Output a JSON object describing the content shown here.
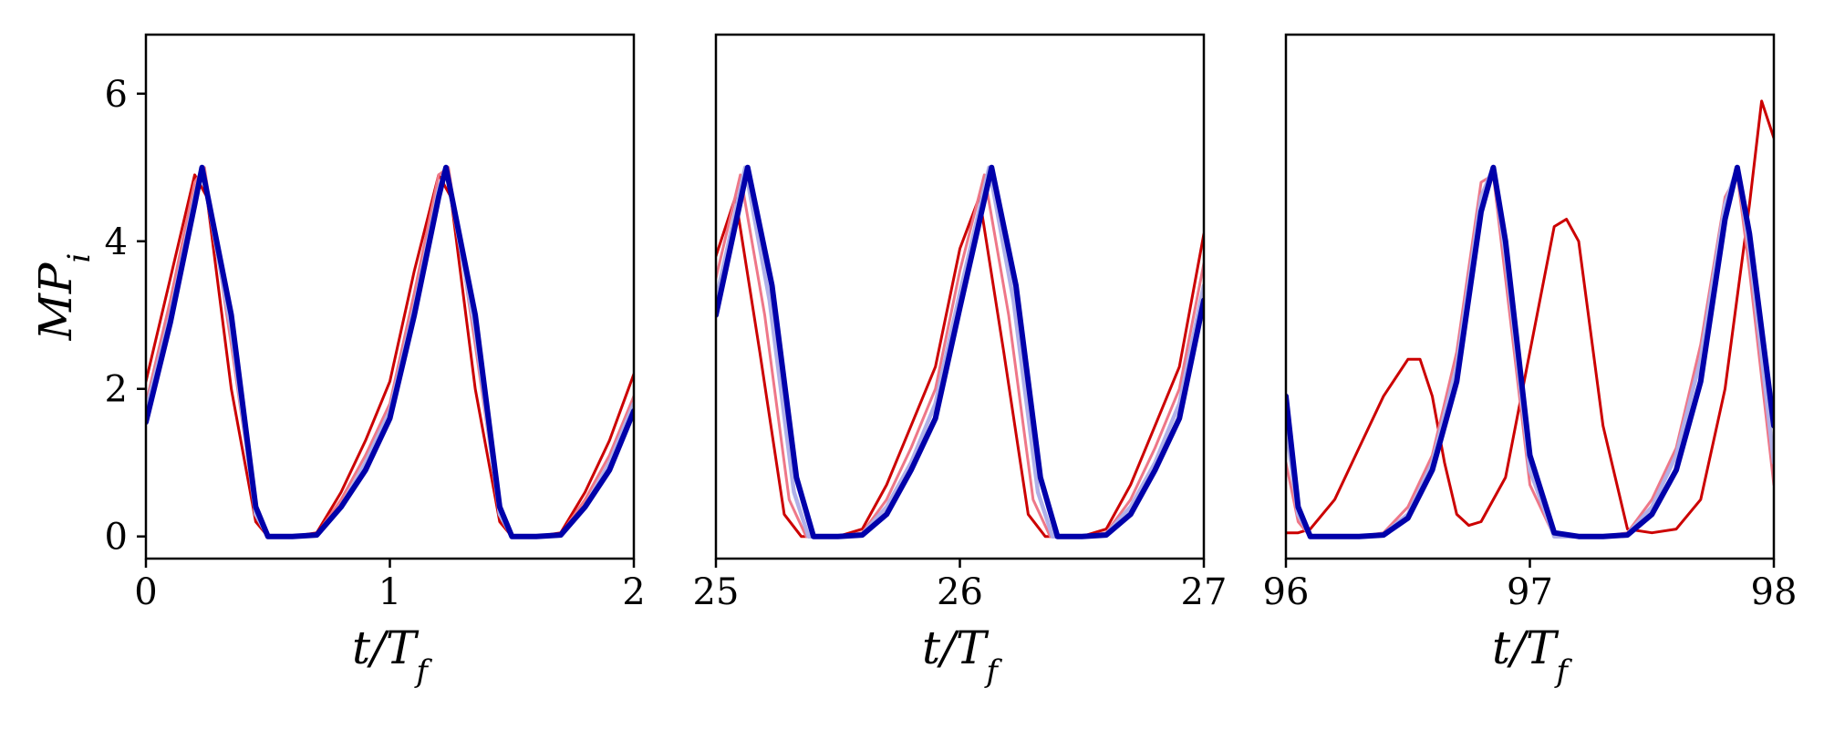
{
  "chart_data": [
    {
      "type": "line",
      "xlabel": "t/T_f",
      "ylabel": "MP_i",
      "xlim": [
        0,
        2
      ],
      "ylim": [
        -0.3,
        6.8
      ],
      "xticks": [
        "0",
        "1",
        "2"
      ],
      "yticks": [
        "0",
        "2",
        "4",
        "6"
      ],
      "grid": false,
      "series": [
        {
          "color": "#cc0000",
          "x": [
            0,
            0.1,
            0.2,
            0.25,
            0.35,
            0.45,
            0.5,
            0.6,
            0.7,
            0.8,
            0.9,
            1.0,
            1.1,
            1.2,
            1.25,
            1.35,
            1.45,
            1.5,
            1.6,
            1.7,
            1.8,
            1.9,
            2.0
          ],
          "y": [
            2.1,
            3.5,
            4.9,
            4.6,
            2.0,
            0.2,
            0,
            0,
            0.05,
            0.6,
            1.3,
            2.1,
            3.6,
            4.9,
            4.6,
            2.0,
            0.2,
            0,
            0,
            0.05,
            0.6,
            1.3,
            2.2
          ]
        },
        {
          "color": "#ee7788",
          "x": [
            0,
            0.1,
            0.2,
            0.24,
            0.35,
            0.45,
            0.5,
            0.6,
            0.7,
            0.8,
            0.9,
            1.0,
            1.1,
            1.2,
            1.24,
            1.35,
            1.45,
            1.5,
            1.6,
            1.7,
            1.8,
            1.9,
            2.0
          ],
          "y": [
            1.8,
            3.2,
            4.8,
            5.0,
            2.6,
            0.3,
            0,
            0,
            0.03,
            0.5,
            1.1,
            1.8,
            3.3,
            4.9,
            5.0,
            2.6,
            0.3,
            0,
            0,
            0.03,
            0.5,
            1.1,
            1.9
          ]
        },
        {
          "color": "#b0b0e8",
          "x": [
            0,
            0.1,
            0.2,
            0.23,
            0.35,
            0.45,
            0.5,
            0.6,
            0.7,
            0.8,
            0.9,
            1.0,
            1.1,
            1.2,
            1.23,
            1.35,
            1.45,
            1.5,
            1.6,
            1.7,
            1.8,
            1.9,
            2.0
          ],
          "y": [
            1.7,
            3.0,
            4.6,
            5.0,
            2.8,
            0.3,
            0,
            0,
            0.02,
            0.4,
            1.0,
            1.7,
            3.1,
            4.7,
            5.0,
            2.8,
            0.3,
            0,
            0,
            0.02,
            0.4,
            1.0,
            1.8
          ]
        },
        {
          "color": "#0000aa",
          "x": [
            0,
            0.1,
            0.2,
            0.23,
            0.35,
            0.45,
            0.5,
            0.6,
            0.7,
            0.8,
            0.9,
            1.0,
            1.1,
            1.2,
            1.23,
            1.35,
            1.45,
            1.5,
            1.6,
            1.7,
            1.8,
            1.9,
            2.0
          ],
          "y": [
            1.55,
            2.9,
            4.5,
            5.0,
            3.0,
            0.4,
            0,
            0,
            0.02,
            0.4,
            0.9,
            1.6,
            3.0,
            4.6,
            5.0,
            3.0,
            0.4,
            0,
            0,
            0.02,
            0.4,
            0.9,
            1.7
          ]
        }
      ]
    },
    {
      "type": "line",
      "xlabel": "t/T_f",
      "ylabel": "",
      "xlim": [
        25,
        27
      ],
      "ylim": [
        -0.3,
        6.8
      ],
      "xticks": [
        "25",
        "26",
        "27"
      ],
      "yticks": [],
      "grid": false,
      "series": [
        {
          "color": "#cc0000",
          "x": [
            25,
            25.08,
            25.18,
            25.28,
            25.35,
            25.4,
            25.5,
            25.6,
            25.7,
            25.8,
            25.9,
            26.0,
            26.08,
            26.18,
            26.28,
            26.35,
            26.4,
            26.5,
            26.6,
            26.7,
            26.8,
            26.9,
            27.0
          ],
          "y": [
            3.8,
            4.6,
            2.5,
            0.3,
            0,
            0,
            0,
            0.1,
            0.7,
            1.5,
            2.3,
            3.9,
            4.6,
            2.5,
            0.3,
            0,
            0,
            0,
            0.1,
            0.7,
            1.5,
            2.3,
            4.1
          ]
        },
        {
          "color": "#ee7788",
          "x": [
            25,
            25.1,
            25.2,
            25.3,
            25.37,
            25.42,
            25.5,
            25.6,
            25.7,
            25.8,
            25.9,
            26.0,
            26.1,
            26.2,
            26.3,
            26.37,
            26.42,
            26.5,
            26.6,
            26.7,
            26.8,
            26.9,
            27.0
          ],
          "y": [
            3.5,
            4.9,
            3.0,
            0.5,
            0,
            0,
            0,
            0.05,
            0.5,
            1.2,
            2.0,
            3.6,
            4.9,
            3.0,
            0.5,
            0,
            0,
            0,
            0.05,
            0.5,
            1.2,
            2.0,
            3.7
          ]
        },
        {
          "color": "#b0b0e8",
          "x": [
            25,
            25.12,
            25.22,
            25.32,
            25.38,
            25.43,
            25.5,
            25.6,
            25.7,
            25.8,
            25.9,
            26.0,
            26.12,
            26.22,
            26.32,
            26.38,
            26.43,
            26.5,
            26.6,
            26.7,
            26.8,
            26.9,
            27.0
          ],
          "y": [
            3.2,
            5.0,
            3.2,
            0.6,
            0,
            0,
            0,
            0.03,
            0.4,
            1.0,
            1.8,
            3.3,
            5.0,
            3.2,
            0.6,
            0,
            0,
            0,
            0.03,
            0.4,
            1.0,
            1.8,
            3.4
          ]
        },
        {
          "color": "#0000aa",
          "x": [
            25,
            25.13,
            25.23,
            25.33,
            25.4,
            25.45,
            25.5,
            25.6,
            25.7,
            25.8,
            25.9,
            26.0,
            26.13,
            26.23,
            26.33,
            26.4,
            26.45,
            26.5,
            26.6,
            26.7,
            26.8,
            26.9,
            27.0
          ],
          "y": [
            3.0,
            5.0,
            3.4,
            0.8,
            0,
            0,
            0,
            0.02,
            0.3,
            0.9,
            1.6,
            3.1,
            5.0,
            3.4,
            0.8,
            0,
            0,
            0,
            0.02,
            0.3,
            0.9,
            1.6,
            3.2
          ]
        }
      ]
    },
    {
      "type": "line",
      "xlabel": "t/T_f",
      "ylabel": "",
      "xlim": [
        96,
        98
      ],
      "ylim": [
        -0.3,
        6.8
      ],
      "xticks": [
        "96",
        "97",
        "98"
      ],
      "yticks": [],
      "grid": false,
      "series": [
        {
          "color": "#cc0000",
          "x": [
            96,
            96.05,
            96.1,
            96.2,
            96.3,
            96.4,
            96.5,
            96.55,
            96.6,
            96.65,
            96.7,
            96.75,
            96.8,
            96.9,
            97.0,
            97.1,
            97.15,
            97.2,
            97.3,
            97.4,
            97.5,
            97.6,
            97.7,
            97.8,
            97.9,
            97.95,
            98.0
          ],
          "y": [
            0.05,
            0.05,
            0.1,
            0.5,
            1.2,
            1.9,
            2.4,
            2.4,
            1.9,
            1.0,
            0.3,
            0.15,
            0.2,
            0.8,
            2.5,
            4.2,
            4.3,
            4.0,
            1.5,
            0.1,
            0.05,
            0.1,
            0.5,
            2.0,
            4.5,
            5.9,
            5.4
          ]
        },
        {
          "color": "#ee7788",
          "x": [
            96,
            96.05,
            96.1,
            96.2,
            96.3,
            96.4,
            96.5,
            96.6,
            96.7,
            96.8,
            96.85,
            96.9,
            97.0,
            97.1,
            97.2,
            97.3,
            97.4,
            97.5,
            97.6,
            97.7,
            97.8,
            97.85,
            97.9,
            98.0
          ],
          "y": [
            1.0,
            0.2,
            0,
            0,
            0,
            0.05,
            0.4,
            1.1,
            2.5,
            4.8,
            4.9,
            3.5,
            0.7,
            0,
            0,
            0,
            0.05,
            0.5,
            1.2,
            2.6,
            4.6,
            4.9,
            3.6,
            0.7
          ]
        },
        {
          "color": "#b0b0e8",
          "x": [
            96,
            96.05,
            96.1,
            96.2,
            96.3,
            96.4,
            96.5,
            96.6,
            96.7,
            96.8,
            96.85,
            96.9,
            97.0,
            97.1,
            97.2,
            97.3,
            97.4,
            97.5,
            97.6,
            97.7,
            97.8,
            97.85,
            97.9,
            98.0
          ],
          "y": [
            1.5,
            0.3,
            0,
            0,
            0,
            0.03,
            0.3,
            1.0,
            2.3,
            4.6,
            5.0,
            3.8,
            0.9,
            0,
            0,
            0,
            0.03,
            0.4,
            1.1,
            2.4,
            4.5,
            5.0,
            3.9,
            1.0
          ]
        },
        {
          "color": "#0000aa",
          "x": [
            96,
            96.05,
            96.1,
            96.2,
            96.3,
            96.4,
            96.5,
            96.6,
            96.7,
            96.8,
            96.85,
            96.9,
            97.0,
            97.1,
            97.2,
            97.3,
            97.4,
            97.5,
            97.6,
            97.7,
            97.8,
            97.85,
            97.9,
            98.0
          ],
          "y": [
            1.9,
            0.4,
            0,
            0,
            0,
            0.02,
            0.25,
            0.9,
            2.1,
            4.4,
            5.0,
            4.0,
            1.1,
            0.05,
            0,
            0,
            0.02,
            0.3,
            0.9,
            2.1,
            4.3,
            5.0,
            4.1,
            1.5
          ]
        }
      ]
    }
  ]
}
